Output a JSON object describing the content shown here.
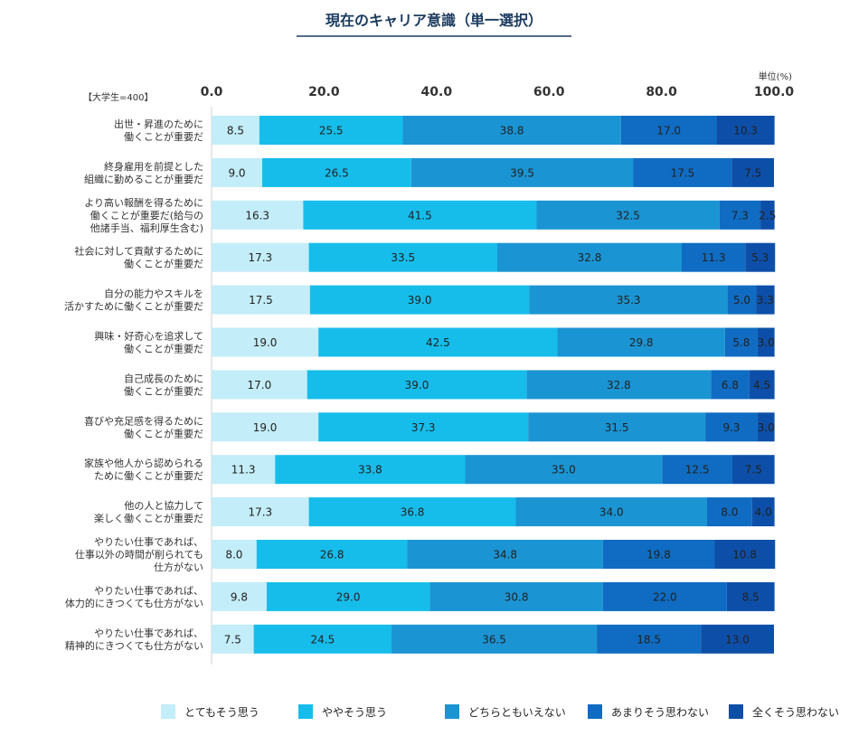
{
  "header": {
    "title": "現在のキャリア意識（単一選択）",
    "unit": "単位(%)",
    "sample": "【大学生=400】"
  },
  "chart_data": {
    "type": "bar",
    "orientation": "horizontal",
    "stacked": true,
    "title": "現在のキャリア意識（単一選択）",
    "xlim": [
      0,
      100
    ],
    "x_ticks": [
      "0.0",
      "20.0",
      "40.0",
      "60.0",
      "80.0",
      "100.0"
    ],
    "grid": false,
    "legend_position": "bottom",
    "categories": [
      [
        "出世・昇進のために",
        "働くことが重要だ"
      ],
      [
        "終身雇用を前提とした",
        "組織に勤めることが重要だ"
      ],
      [
        "より高い報酬を得るために",
        "働くことが重要だ(給与の",
        "他諸手当、福利厚生含む)"
      ],
      [
        "社会に対して貢献するために",
        "働くことが重要だ"
      ],
      [
        "自分の能力やスキルを",
        "活かすために働くことが重要だ"
      ],
      [
        "興味・好奇心を追求して",
        "働くことが重要だ"
      ],
      [
        "自己成長のために",
        "働くことが重要だ"
      ],
      [
        "喜びや充足感を得るために",
        "働くことが重要だ"
      ],
      [
        "家族や他人から認められる",
        "ために働くことが重要だ"
      ],
      [
        "他の人と協力して",
        "楽しく働くことが重要だ"
      ],
      [
        "やりたい仕事であれば、",
        "仕事以外の時間が削られても",
        "仕方がない"
      ],
      [
        "やりたい仕事であれば、",
        "体力的にきつくても仕方がない"
      ],
      [
        "やりたい仕事であれば、",
        "精神的にきつくても仕方がない"
      ]
    ],
    "series": [
      {
        "name": "とてもそう思う",
        "color": "#c3edf8",
        "values": [
          8.5,
          9.0,
          16.3,
          17.3,
          17.5,
          19.0,
          17.0,
          19.0,
          11.3,
          17.3,
          8.0,
          9.8,
          7.5
        ]
      },
      {
        "name": "ややそう思う",
        "color": "#16bdeb",
        "values": [
          25.5,
          26.5,
          41.5,
          33.5,
          39.0,
          42.5,
          39.0,
          37.3,
          33.8,
          36.8,
          26.8,
          29.0,
          24.5
        ]
      },
      {
        "name": "どちらともいえない",
        "color": "#1b94d3",
        "values": [
          38.8,
          39.5,
          32.5,
          32.8,
          35.3,
          29.8,
          32.8,
          31.5,
          35.0,
          34.0,
          34.8,
          30.8,
          36.5
        ]
      },
      {
        "name": "あまりそう思わない",
        "color": "#0f6cc2",
        "values": [
          17.0,
          17.5,
          7.3,
          11.3,
          5.0,
          5.8,
          6.8,
          9.3,
          12.5,
          8.0,
          19.8,
          22.0,
          18.5
        ]
      },
      {
        "name": "全くそう思わない",
        "color": "#0d4fa8",
        "values": [
          10.3,
          7.5,
          2.5,
          5.3,
          3.3,
          3.0,
          4.5,
          3.0,
          7.5,
          4.0,
          10.8,
          8.5,
          13.0
        ]
      }
    ]
  }
}
